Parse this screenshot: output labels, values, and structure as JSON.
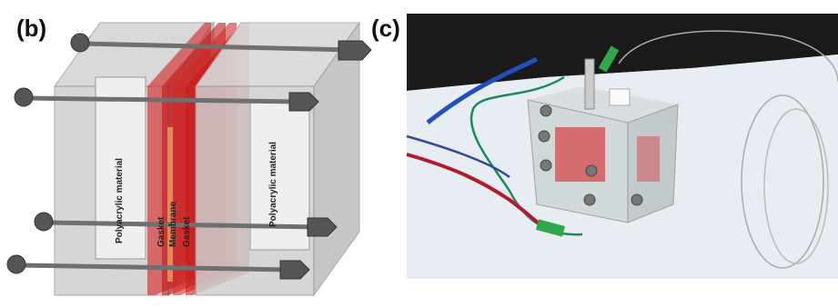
{
  "panel_b": {
    "label": "(b)",
    "texts": [
      "Polyacrylic material",
      "Gasket",
      "Membrane",
      "Gasket",
      "Polyacrylic material"
    ]
  },
  "panel_c": {
    "label": "(c)"
  }
}
